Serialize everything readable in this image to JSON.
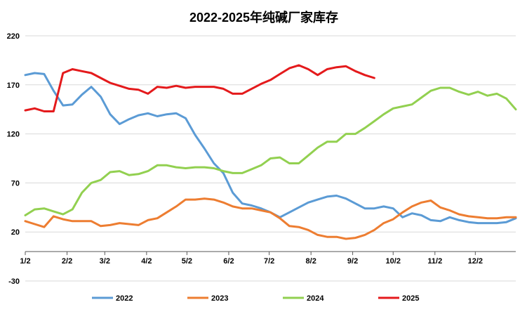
{
  "chart_data": {
    "type": "line",
    "title": "2022-2025年纯碱厂家库存",
    "xlabel": "",
    "ylabel": "",
    "ylim": [
      -30,
      220
    ],
    "yticks": [
      -30,
      20,
      70,
      120,
      170,
      220
    ],
    "x_range": [
      1,
      53
    ],
    "xticks": [
      {
        "label": "1/2",
        "x": 1
      },
      {
        "label": "2/2",
        "x": 5.43
      },
      {
        "label": "3/2",
        "x": 9.43
      },
      {
        "label": "4/2",
        "x": 13.86
      },
      {
        "label": "5/2",
        "x": 18.14
      },
      {
        "label": "6/2",
        "x": 22.57
      },
      {
        "label": "7/2",
        "x": 26.86
      },
      {
        "label": "8/2",
        "x": 31.29
      },
      {
        "label": "9/2",
        "x": 35.71
      },
      {
        "label": "10/2",
        "x": 40
      },
      {
        "label": "11/2",
        "x": 44.43
      },
      {
        "label": "12/2",
        "x": 48.71
      }
    ],
    "grid": "horizontal",
    "legend_position": "bottom",
    "series": [
      {
        "name": "2022",
        "color": "#5B9BD5",
        "x": [
          1,
          2,
          3,
          4,
          5,
          6,
          7,
          8,
          9,
          10,
          11,
          12,
          13,
          14,
          15,
          16,
          17,
          18,
          19,
          20,
          21,
          22,
          23,
          24,
          25,
          26,
          27,
          28,
          29,
          30,
          31,
          32,
          33,
          34,
          35,
          36,
          37,
          38,
          39,
          40,
          41,
          42,
          43,
          44,
          45,
          46,
          47,
          48,
          49,
          50,
          51,
          52,
          53
        ],
        "values": [
          180,
          182,
          181,
          164,
          149,
          150,
          160,
          168,
          158,
          140,
          130,
          135,
          139,
          141,
          138,
          140,
          141,
          136,
          119,
          105,
          90,
          80,
          60,
          49,
          47,
          44,
          40,
          35,
          40,
          45,
          50,
          53,
          56,
          57,
          54,
          49,
          44,
          44,
          46,
          44,
          35,
          39,
          37,
          32,
          31,
          35,
          32,
          30,
          29,
          29,
          29,
          30,
          34
        ]
      },
      {
        "name": "2023",
        "color": "#ED7D31",
        "x": [
          1,
          2,
          3,
          4,
          5,
          6,
          7,
          8,
          9,
          10,
          11,
          12,
          13,
          14,
          15,
          16,
          17,
          18,
          19,
          20,
          21,
          22,
          23,
          24,
          25,
          26,
          27,
          28,
          29,
          30,
          31,
          32,
          33,
          34,
          35,
          36,
          37,
          38,
          39,
          40,
          41,
          42,
          43,
          44,
          45,
          46,
          47,
          48,
          49,
          50,
          51,
          52,
          53
        ],
        "values": [
          31,
          28,
          25,
          36,
          33,
          31,
          31,
          31,
          26,
          27,
          29,
          28,
          27,
          32,
          34,
          40,
          46,
          53,
          53,
          54,
          53,
          50,
          46,
          44,
          44,
          42,
          40,
          34,
          26,
          25,
          22,
          17,
          15,
          15,
          13,
          14,
          17,
          22,
          29,
          33,
          40,
          46,
          50,
          52,
          45,
          42,
          38,
          36,
          35,
          34,
          34,
          35,
          35
        ]
      },
      {
        "name": "2024",
        "color": "#92D050",
        "x": [
          1,
          2,
          3,
          4,
          5,
          6,
          7,
          8,
          9,
          10,
          11,
          12,
          13,
          14,
          15,
          16,
          17,
          18,
          19,
          20,
          21,
          22,
          23,
          24,
          25,
          26,
          27,
          28,
          29,
          30,
          31,
          32,
          33,
          34,
          35,
          36,
          37,
          38,
          39,
          40,
          41,
          42,
          43,
          44,
          45,
          46,
          47,
          48,
          49,
          50,
          51,
          52,
          53
        ],
        "values": [
          37,
          43,
          44,
          41,
          38,
          43,
          60,
          70,
          73,
          81,
          82,
          78,
          79,
          82,
          88,
          88,
          86,
          85,
          86,
          86,
          85,
          82,
          80,
          80,
          84,
          88,
          95,
          96,
          90,
          90,
          98,
          106,
          112,
          112,
          120,
          120,
          126,
          133,
          140,
          146,
          148,
          150,
          157,
          164,
          167,
          167,
          163,
          160,
          163,
          159,
          161,
          156,
          145
        ]
      },
      {
        "name": "2025",
        "color": "#E41A1C",
        "x": [
          1,
          2,
          3,
          4,
          5,
          6,
          7,
          8,
          9,
          10,
          11,
          12,
          13,
          14,
          15,
          16,
          17,
          18,
          19,
          20,
          21,
          22,
          23,
          24,
          25,
          26,
          27,
          28,
          29,
          30,
          31,
          32,
          33,
          34,
          35,
          36,
          37,
          38
        ],
        "values": [
          144,
          146,
          143,
          143,
          182,
          186,
          184,
          182,
          177,
          172,
          169,
          166,
          165,
          161,
          168,
          167,
          169,
          167,
          168,
          168,
          168,
          166,
          161,
          161,
          166,
          171,
          175,
          181,
          187,
          190,
          186,
          180,
          186,
          188,
          189,
          184,
          180,
          177
        ]
      }
    ]
  }
}
